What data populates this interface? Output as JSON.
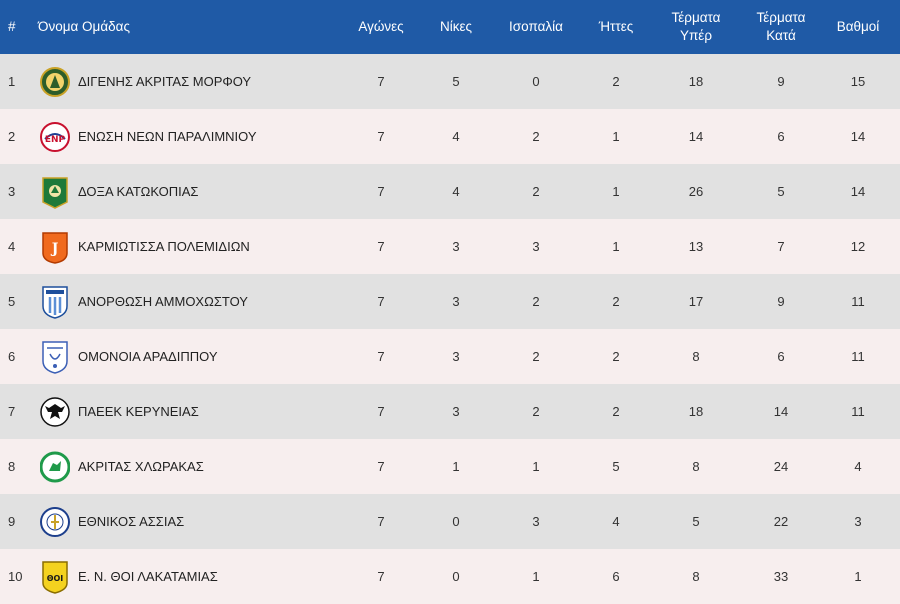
{
  "header": {
    "pos": "#",
    "team": "Όνομα Ομάδας",
    "played": "Αγώνες",
    "wins": "Νίκες",
    "draws": "Ισοπαλία",
    "losses": "Ήττες",
    "gf_line1": "Τέρματα",
    "gf_line2": "Υπέρ",
    "ga_line1": "Τέρματα",
    "ga_line2": "Κατά",
    "points": "Βαθμοί"
  },
  "rows": [
    {
      "pos": "1",
      "team": "ΔΙΓΕΝΗΣ ΑΚΡΙΤΑΣ ΜΟΡΦΟΥ",
      "played": "7",
      "wins": "5",
      "draws": "0",
      "losses": "2",
      "gf": "18",
      "ga": "9",
      "points": "15",
      "logo": "digenis-logo"
    },
    {
      "pos": "2",
      "team": "ΕΝΩΣΗ ΝΕΩΝ ΠΑΡΑΛΙΜΝΙΟΥ",
      "played": "7",
      "wins": "4",
      "draws": "2",
      "losses": "1",
      "gf": "14",
      "ga": "6",
      "points": "14",
      "logo": "enp-logo"
    },
    {
      "pos": "3",
      "team": "ΔΟΞΑ ΚΑΤΩΚΟΠΙΑΣ",
      "played": "7",
      "wins": "4",
      "draws": "2",
      "losses": "1",
      "gf": "26",
      "ga": "5",
      "points": "14",
      "logo": "doxa-logo"
    },
    {
      "pos": "4",
      "team": "ΚΑΡΜΙΩΤΙΣΣΑ ΠΟΛΕΜΙΔΙΩΝ",
      "played": "7",
      "wins": "3",
      "draws": "3",
      "losses": "1",
      "gf": "13",
      "ga": "7",
      "points": "12",
      "logo": "karmiotissa-logo"
    },
    {
      "pos": "5",
      "team": "ΑΝΟΡΘΩΣΗ ΑΜΜΟΧΩΣΤΟΥ",
      "played": "7",
      "wins": "3",
      "draws": "2",
      "losses": "2",
      "gf": "17",
      "ga": "9",
      "points": "11",
      "logo": "anorthosis-logo"
    },
    {
      "pos": "6",
      "team": "ΟΜΟΝΟΙΑ ΑΡΑΔΙΠΠΟΥ",
      "played": "7",
      "wins": "3",
      "draws": "2",
      "losses": "2",
      "gf": "8",
      "ga": "6",
      "points": "11",
      "logo": "omonia-logo"
    },
    {
      "pos": "7",
      "team": "ΠΑΕΕΚ ΚΕΡΥΝΕΙΑΣ",
      "played": "7",
      "wins": "3",
      "draws": "2",
      "losses": "2",
      "gf": "18",
      "ga": "14",
      "points": "11",
      "logo": "paeek-logo"
    },
    {
      "pos": "8",
      "team": "ΑΚΡΙΤΑΣ ΧΛΩΡΑΚΑΣ",
      "played": "7",
      "wins": "1",
      "draws": "1",
      "losses": "5",
      "gf": "8",
      "ga": "24",
      "points": "4",
      "logo": "akritas-logo"
    },
    {
      "pos": "9",
      "team": "ΕΘΝΙΚΟΣ ΑΣΣΙΑΣ",
      "played": "7",
      "wins": "0",
      "draws": "3",
      "losses": "4",
      "gf": "5",
      "ga": "22",
      "points": "3",
      "logo": "ethnikos-logo"
    },
    {
      "pos": "10",
      "team": "Ε. Ν. ΘΟΙ ΛΑΚΑΤΑΜΙΑΣ",
      "played": "7",
      "wins": "0",
      "draws": "1",
      "losses": "6",
      "gf": "8",
      "ga": "33",
      "points": "1",
      "logo": "thoi-logo"
    }
  ],
  "colors": {
    "header_bg": "#1f5aa6",
    "row_odd": "#e1e1e1",
    "row_even": "#f7eeee"
  }
}
